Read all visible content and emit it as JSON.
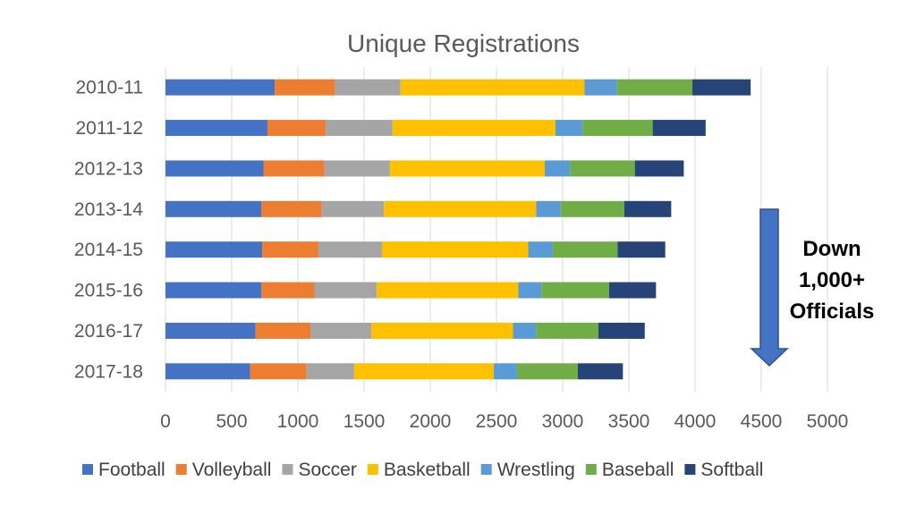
{
  "chart_data": {
    "type": "bar",
    "orientation": "horizontal",
    "stacked": true,
    "title": "Unique Registrations",
    "categories": [
      "2010-11",
      "2011-12",
      "2012-13",
      "2013-14",
      "2014-15",
      "2015-16",
      "2016-17",
      "2017-18"
    ],
    "series": [
      {
        "name": "Football",
        "color": "#4472C4",
        "values": [
          825,
          770,
          740,
          725,
          730,
          725,
          680,
          640
        ]
      },
      {
        "name": "Volleyball",
        "color": "#ED7D31",
        "values": [
          455,
          440,
          460,
          455,
          425,
          400,
          415,
          425
        ]
      },
      {
        "name": "Soccer",
        "color": "#A5A5A5",
        "values": [
          495,
          505,
          495,
          470,
          480,
          470,
          460,
          360
        ]
      },
      {
        "name": "Basketball",
        "color": "#FFC000",
        "values": [
          1390,
          1230,
          1170,
          1150,
          1105,
          1070,
          1070,
          1055
        ]
      },
      {
        "name": "Wrestling",
        "color": "#5B9BD5",
        "values": [
          245,
          205,
          190,
          185,
          185,
          175,
          175,
          175
        ]
      },
      {
        "name": "Baseball",
        "color": "#70AD47",
        "values": [
          570,
          530,
          490,
          480,
          490,
          510,
          470,
          460
        ]
      },
      {
        "name": "Softball",
        "color": "#264478",
        "values": [
          440,
          400,
          370,
          355,
          360,
          355,
          350,
          340
        ]
      }
    ],
    "xlim": [
      0,
      5000
    ],
    "xticks": [
      "0",
      "500",
      "1000",
      "1500",
      "2000",
      "2500",
      "3000",
      "3500",
      "4000",
      "4500",
      "5000"
    ],
    "xtick_values": [
      0,
      500,
      1000,
      1500,
      2000,
      2500,
      3000,
      3500,
      4000,
      4500,
      5000
    ],
    "grid": true,
    "legend_position": "bottom",
    "annotation": {
      "lines": [
        "Down",
        "1,000+",
        "Officials"
      ],
      "arrow_color": "#4472C4"
    }
  }
}
